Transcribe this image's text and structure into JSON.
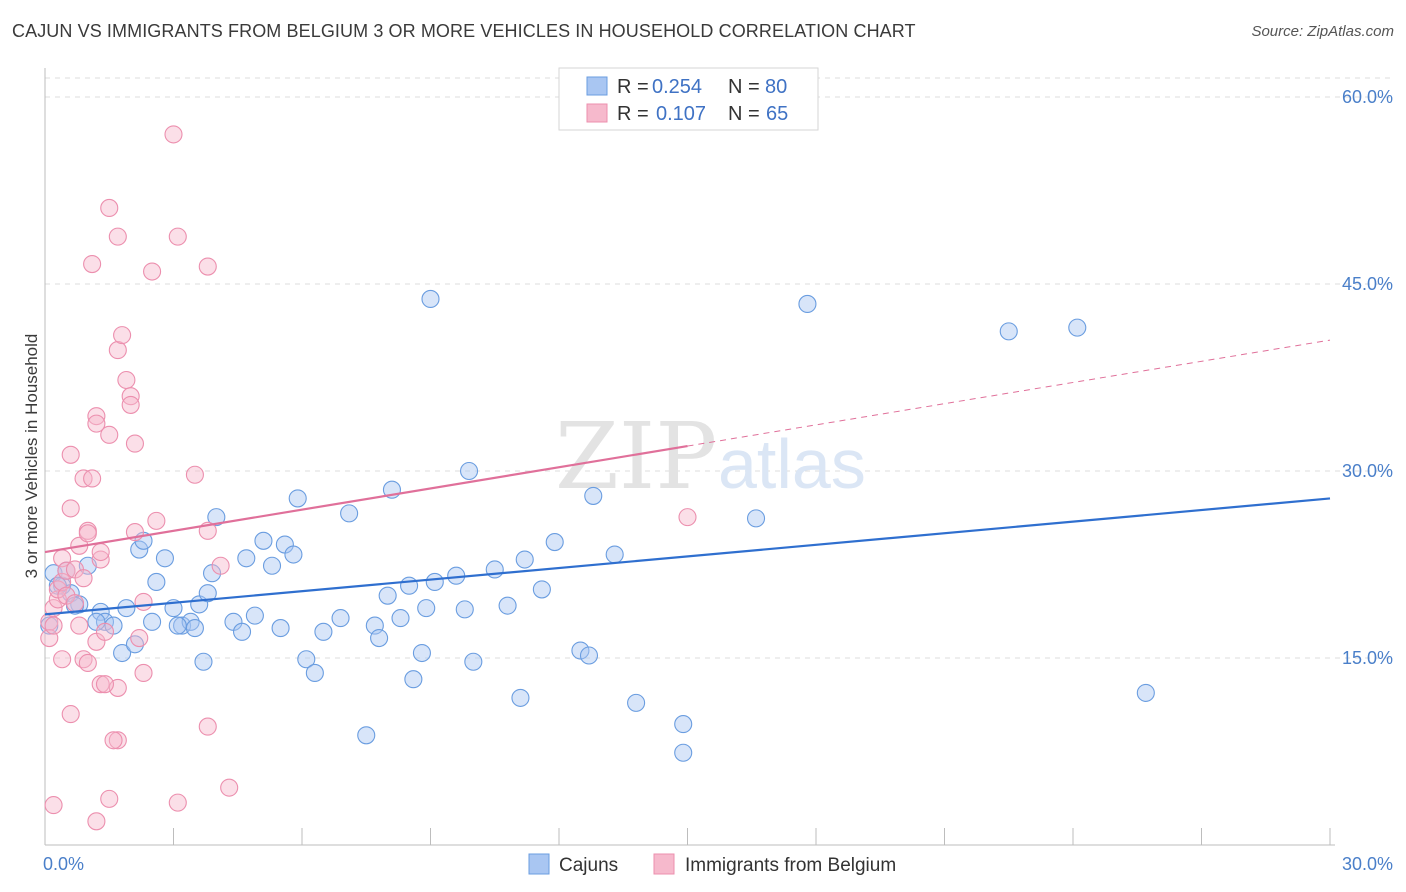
{
  "title": "CAJUN VS IMMIGRANTS FROM BELGIUM 3 OR MORE VEHICLES IN HOUSEHOLD CORRELATION CHART",
  "source": "Source: ZipAtlas.com",
  "watermark": {
    "zip": "ZIP",
    "atlas": "atlas"
  },
  "legend_top": [
    {
      "r_label": "R =",
      "r_value": "0.254",
      "n_label": "N =",
      "n_value": "80",
      "color": "#a9c6f2"
    },
    {
      "r_label": "R =",
      "r_value": "0.107",
      "n_label": "N =",
      "n_value": "65",
      "color": "#f6b9cc"
    }
  ],
  "chart_data": {
    "type": "scatter",
    "title": "CAJUN VS IMMIGRANTS FROM BELGIUM 3 OR MORE VEHICLES IN HOUSEHOLD CORRELATION CHART",
    "xlabel": "",
    "ylabel": "3 or more Vehicles in Household",
    "xlim": [
      0,
      30
    ],
    "ylim": [
      0,
      60
    ],
    "x_tick_labels": [
      "0.0%",
      "30.0%"
    ],
    "y_ticks": [
      15,
      30,
      45,
      60
    ],
    "y_tick_labels": [
      "15.0%",
      "30.0%",
      "45.0%",
      "60.0%"
    ],
    "grid": true,
    "legend_position": "bottom",
    "series": [
      {
        "name": "Cajuns",
        "color": "#6a9de0",
        "fill": "#a9c6f2",
        "trend": {
          "x": [
            0,
            30
          ],
          "y": [
            18.5,
            27.8
          ],
          "dashed_from": null
        },
        "points": [
          [
            0.2,
            21.8
          ],
          [
            0.4,
            20.8
          ],
          [
            0.5,
            22.0
          ],
          [
            0.6,
            20.2
          ],
          [
            0.8,
            19.3
          ],
          [
            1.0,
            22.4
          ],
          [
            1.3,
            18.7
          ],
          [
            1.4,
            17.9
          ],
          [
            1.6,
            17.6
          ],
          [
            1.9,
            19.0
          ],
          [
            1.8,
            15.4
          ],
          [
            2.1,
            16.1
          ],
          [
            2.2,
            23.7
          ],
          [
            2.3,
            24.4
          ],
          [
            2.6,
            21.1
          ],
          [
            2.8,
            23.0
          ],
          [
            3.0,
            19.0
          ],
          [
            3.2,
            17.6
          ],
          [
            3.4,
            17.9
          ],
          [
            3.5,
            17.4
          ],
          [
            3.6,
            19.3
          ],
          [
            3.7,
            14.7
          ],
          [
            3.8,
            20.2
          ],
          [
            3.9,
            21.8
          ],
          [
            4.0,
            26.3
          ],
          [
            4.4,
            17.9
          ],
          [
            4.6,
            17.1
          ],
          [
            4.7,
            23.0
          ],
          [
            4.9,
            18.4
          ],
          [
            5.1,
            24.4
          ],
          [
            5.3,
            22.4
          ],
          [
            5.5,
            17.4
          ],
          [
            5.6,
            24.1
          ],
          [
            5.8,
            23.3
          ],
          [
            5.9,
            27.8
          ],
          [
            6.1,
            14.9
          ],
          [
            6.3,
            13.8
          ],
          [
            6.5,
            17.1
          ],
          [
            6.9,
            18.2
          ],
          [
            7.1,
            26.6
          ],
          [
            7.5,
            8.8
          ],
          [
            7.7,
            17.6
          ],
          [
            7.8,
            16.6
          ],
          [
            8.0,
            20.0
          ],
          [
            8.1,
            28.5
          ],
          [
            8.3,
            18.2
          ],
          [
            8.5,
            20.8
          ],
          [
            8.6,
            13.3
          ],
          [
            8.8,
            15.4
          ],
          [
            8.9,
            19.0
          ],
          [
            9.0,
            43.8
          ],
          [
            9.1,
            21.1
          ],
          [
            9.6,
            21.6
          ],
          [
            9.8,
            18.9
          ],
          [
            9.9,
            30.0
          ],
          [
            10.0,
            14.7
          ],
          [
            10.5,
            22.1
          ],
          [
            10.8,
            19.2
          ],
          [
            11.1,
            11.8
          ],
          [
            11.2,
            22.9
          ],
          [
            11.6,
            20.5
          ],
          [
            11.9,
            24.3
          ],
          [
            12.5,
            15.6
          ],
          [
            12.7,
            15.2
          ],
          [
            12.8,
            28.0
          ],
          [
            13.3,
            23.3
          ],
          [
            13.8,
            11.4
          ],
          [
            14.9,
            9.7
          ],
          [
            14.9,
            7.4
          ],
          [
            16.6,
            26.2
          ],
          [
            17.8,
            43.4
          ],
          [
            22.5,
            41.2
          ],
          [
            24.1,
            41.5
          ],
          [
            25.7,
            12.2
          ],
          [
            0.1,
            17.6
          ],
          [
            0.3,
            20.8
          ],
          [
            0.7,
            19.2
          ],
          [
            1.2,
            17.9
          ],
          [
            2.5,
            17.9
          ],
          [
            3.1,
            17.6
          ]
        ]
      },
      {
        "name": "Immigrants from Belgium",
        "color": "#ec8fae",
        "fill": "#f6b9cc",
        "trend": {
          "x": [
            0,
            30
          ],
          "y": [
            23.5,
            40.5
          ],
          "dashed_from": 15
        },
        "points": [
          [
            0.1,
            17.9
          ],
          [
            0.1,
            16.6
          ],
          [
            0.2,
            19.0
          ],
          [
            0.2,
            17.6
          ],
          [
            0.3,
            19.7
          ],
          [
            0.3,
            20.5
          ],
          [
            0.4,
            21.1
          ],
          [
            0.4,
            23.0
          ],
          [
            0.5,
            22.0
          ],
          [
            0.5,
            20.0
          ],
          [
            0.6,
            27.0
          ],
          [
            0.6,
            31.3
          ],
          [
            0.6,
            10.5
          ],
          [
            0.7,
            22.1
          ],
          [
            0.7,
            19.4
          ],
          [
            0.8,
            24.0
          ],
          [
            0.8,
            17.6
          ],
          [
            0.9,
            29.4
          ],
          [
            0.9,
            21.4
          ],
          [
            0.9,
            14.9
          ],
          [
            1.0,
            25.2
          ],
          [
            1.0,
            25.0
          ],
          [
            1.1,
            29.4
          ],
          [
            1.1,
            46.6
          ],
          [
            1.2,
            34.4
          ],
          [
            1.2,
            33.8
          ],
          [
            1.2,
            16.3
          ],
          [
            1.3,
            22.9
          ],
          [
            1.3,
            23.5
          ],
          [
            1.4,
            17.1
          ],
          [
            1.5,
            51.1
          ],
          [
            1.5,
            32.9
          ],
          [
            1.5,
            3.7
          ],
          [
            1.7,
            48.8
          ],
          [
            1.7,
            39.7
          ],
          [
            1.7,
            12.6
          ],
          [
            1.7,
            8.4
          ],
          [
            1.8,
            40.9
          ],
          [
            1.9,
            37.3
          ],
          [
            2.0,
            36.0
          ],
          [
            2.0,
            35.3
          ],
          [
            2.1,
            25.1
          ],
          [
            2.1,
            32.2
          ],
          [
            2.2,
            16.6
          ],
          [
            2.3,
            19.5
          ],
          [
            2.3,
            13.8
          ],
          [
            2.5,
            46.0
          ],
          [
            2.6,
            26.0
          ],
          [
            3.0,
            57.0
          ],
          [
            3.1,
            48.8
          ],
          [
            3.1,
            3.4
          ],
          [
            3.5,
            29.7
          ],
          [
            3.8,
            46.4
          ],
          [
            3.8,
            25.2
          ],
          [
            3.8,
            9.5
          ],
          [
            4.1,
            22.4
          ],
          [
            4.3,
            4.6
          ],
          [
            15.0,
            26.3
          ],
          [
            0.2,
            3.2
          ],
          [
            0.4,
            14.9
          ],
          [
            1.3,
            12.9
          ],
          [
            1.0,
            14.6
          ],
          [
            1.2,
            1.9
          ],
          [
            1.6,
            8.4
          ],
          [
            1.4,
            12.9
          ]
        ]
      }
    ]
  },
  "legend_bottom": [
    {
      "label": "Cajuns",
      "color": "#a9c6f2"
    },
    {
      "label": "Immigrants from Belgium",
      "color": "#f6b9cc"
    }
  ]
}
